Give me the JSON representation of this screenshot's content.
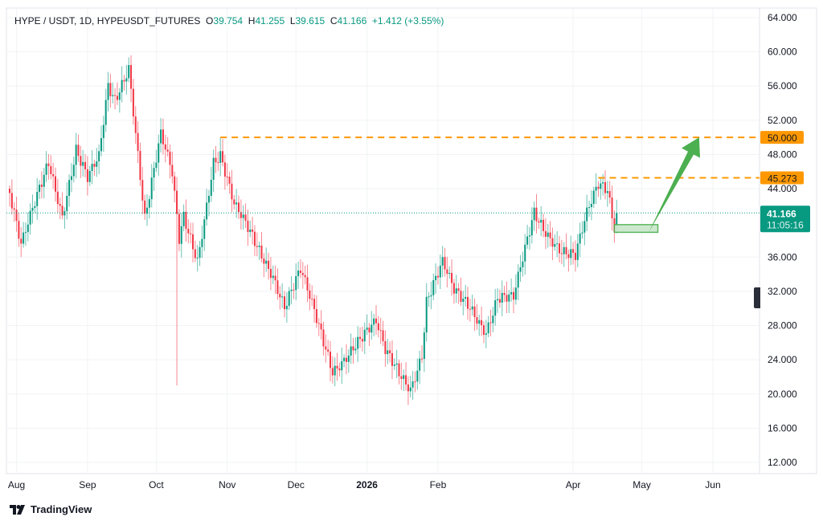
{
  "legend": {
    "symbol": "HYPE / USDT, 1D, HYPEUSDT_FUTURES",
    "open_label": "O",
    "open": "39.754",
    "high_label": "H",
    "high": "41.255",
    "low_label": "L",
    "low": "39.615",
    "close_label": "C",
    "close": "41.166",
    "change": "+1.412 (+3.55%)"
  },
  "branding": "TradingView",
  "colors": {
    "up": "#089981",
    "down": "#f23645",
    "level": "#ff9800",
    "arrow": "#4caf50",
    "box_fill": "#c8e6c9",
    "box_border": "#4caf50"
  },
  "chart_data": {
    "type": "candlestick",
    "title": "HYPE / USDT, 1D, HYPEUSDT_FUTURES",
    "ylim": [
      12,
      64
    ],
    "y_ticks": [
      "64.000",
      "60.000",
      "56.000",
      "52.000",
      "48.000",
      "44.000",
      "36.000",
      "32.000",
      "28.000",
      "24.000",
      "20.000",
      "16.000",
      "12.000"
    ],
    "y_tick_values": [
      64,
      60,
      56,
      52,
      48,
      44,
      36,
      32,
      28,
      24,
      20,
      16,
      12
    ],
    "x_ticks": [
      {
        "label": "Aug",
        "day": 3
      },
      {
        "label": "Sep",
        "day": 34
      },
      {
        "label": "Oct",
        "day": 64
      },
      {
        "label": "Nov",
        "day": 95
      },
      {
        "label": "Dec",
        "day": 125
      },
      {
        "label": "2026",
        "day": 156
      },
      {
        "label": "Feb",
        "day": 187
      },
      {
        "label": "Apr",
        "day": 246
      },
      {
        "label": "May",
        "day": 276
      },
      {
        "label": "Jun",
        "day": 307
      }
    ],
    "x_range_days": [
      -2,
      328
    ],
    "close_path": [
      [
        0,
        43.5
      ],
      [
        5,
        37
      ],
      [
        10,
        41.2
      ],
      [
        17,
        47.3
      ],
      [
        23,
        41.2
      ],
      [
        29,
        48.7
      ],
      [
        34,
        45
      ],
      [
        39,
        47.3
      ],
      [
        43,
        55.7
      ],
      [
        46,
        54.3
      ],
      [
        52,
        58.6
      ],
      [
        55,
        51
      ],
      [
        59,
        40.7
      ],
      [
        66,
        50
      ],
      [
        71,
        45.4
      ],
      [
        74,
        37.9
      ],
      [
        76,
        40.7
      ],
      [
        82,
        36
      ],
      [
        89,
        47.3
      ],
      [
        92,
        47.8
      ],
      [
        98,
        41.7
      ],
      [
        105,
        38.8
      ],
      [
        115,
        34.2
      ],
      [
        120,
        30.4
      ],
      [
        127,
        34.2
      ],
      [
        134,
        28.5
      ],
      [
        141,
        22.9
      ],
      [
        150,
        25.7
      ],
      [
        160,
        28
      ],
      [
        164,
        24.8
      ],
      [
        175,
        21
      ],
      [
        180,
        24.8
      ],
      [
        182,
        30.9
      ],
      [
        189,
        35
      ],
      [
        194,
        31.8
      ],
      [
        201,
        30.4
      ],
      [
        208,
        27.6
      ],
      [
        213,
        31.3
      ],
      [
        220,
        30.9
      ],
      [
        229,
        41.2
      ],
      [
        234,
        39.3
      ],
      [
        241,
        37
      ],
      [
        247,
        36
      ],
      [
        252,
        40.7
      ],
      [
        257,
        44.3
      ],
      [
        261,
        44
      ],
      [
        264,
        39.8
      ],
      [
        265,
        41.166
      ]
    ],
    "notable_wicks": [
      {
        "day": 73,
        "low": 21.0
      },
      {
        "day": 53,
        "high": 59.6
      },
      {
        "day": 92,
        "high": 50.0
      },
      {
        "day": 258,
        "high": 45.273
      }
    ],
    "last_price": {
      "value": 41.166,
      "label": "41.166",
      "countdown": "11:05:16"
    },
    "levels": [
      {
        "value": 50.0,
        "label": "50.000",
        "from_day": 92
      },
      {
        "value": 45.273,
        "label": "45.273",
        "from_day": 257
      }
    ],
    "support_box": {
      "from_day": 264,
      "to_day": 283,
      "top": 39.8,
      "bottom": 38.9
    },
    "arrow": {
      "from_day": 279,
      "from_price": 38.9,
      "to_day": 301,
      "to_price": 50.0
    }
  }
}
